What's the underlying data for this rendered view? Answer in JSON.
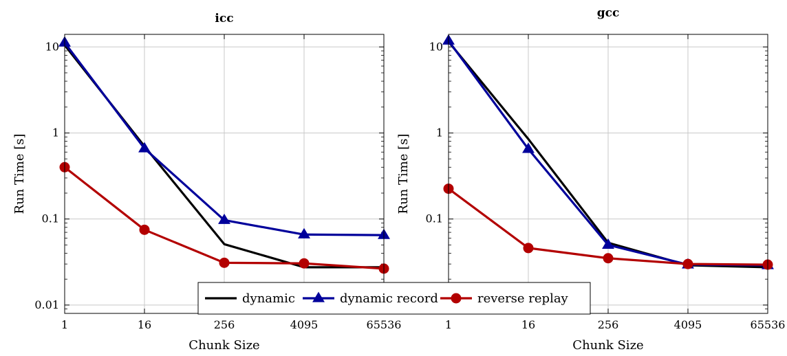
{
  "chart_data": [
    {
      "type": "line",
      "title": "icc",
      "xlabel": "Chunk Size",
      "ylabel": "Run Time [s]",
      "yscale": "log",
      "ylim": [
        0.008,
        14
      ],
      "grid": true,
      "categories": [
        "1",
        "16",
        "256",
        "4095",
        "65536"
      ],
      "yticks": [
        "0.01",
        "0.1",
        "1",
        "10"
      ],
      "series": [
        {
          "name": "dynamic",
          "color": "#000000",
          "marker": "none",
          "values": [
            10.5,
            0.7,
            0.051,
            0.0275,
            0.0275
          ]
        },
        {
          "name": "dynamic record",
          "color": "#00009b",
          "marker": "triangle",
          "values": [
            11.2,
            0.66,
            0.097,
            0.066,
            0.065
          ]
        },
        {
          "name": "reverse replay",
          "color": "#b30000",
          "marker": "circle",
          "values": [
            0.4,
            0.075,
            0.031,
            0.0305,
            0.0265
          ]
        }
      ]
    },
    {
      "type": "line",
      "title": "gcc",
      "xlabel": "Chunk Size",
      "ylabel": "Run Time [s]",
      "yscale": "log",
      "ylim": [
        0.008,
        14
      ],
      "grid": true,
      "categories": [
        "1",
        "16",
        "256",
        "4095",
        "65536"
      ],
      "yticks": [
        "0.01",
        "0.1",
        "1",
        "10"
      ],
      "series": [
        {
          "name": "dynamic",
          "color": "#000000",
          "marker": "none",
          "values": [
            11.5,
            0.85,
            0.053,
            0.029,
            0.0275
          ]
        },
        {
          "name": "dynamic record",
          "color": "#00009b",
          "marker": "triangle",
          "values": [
            11.8,
            0.65,
            0.05,
            0.0295,
            0.029
          ]
        },
        {
          "name": "reverse replay",
          "color": "#b30000",
          "marker": "circle",
          "values": [
            0.225,
            0.046,
            0.035,
            0.03,
            0.0295
          ]
        }
      ]
    }
  ],
  "legend": {
    "placement": "bottom-center",
    "entries": [
      "dynamic",
      "dynamic record",
      "reverse replay"
    ]
  }
}
